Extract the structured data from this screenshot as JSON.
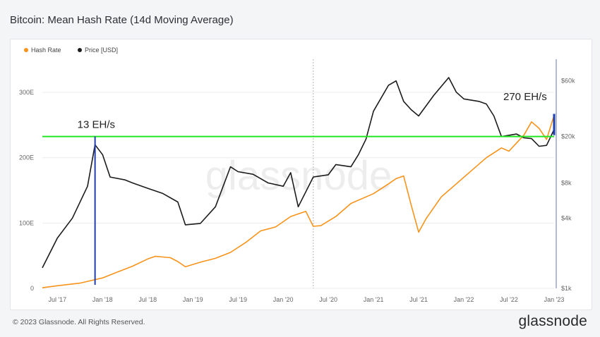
{
  "title": "Bitcoin: Mean Hash Rate (14d Moving Average)",
  "footer": {
    "copyright": "© 2023 Glassnode. All Rights Reserved.",
    "brand": "glassnode"
  },
  "watermark": "glassnode",
  "colors": {
    "hash_rate": "#f7931a",
    "price": "#1c1c1c",
    "threshold": "#22e622",
    "marker": "#1f3fb0",
    "grid": "#ececec"
  },
  "chart_data": {
    "type": "line",
    "title": "Bitcoin: Mean Hash Rate (14d Moving Average)",
    "legend": [
      {
        "name": "Hash Rate",
        "color": "#f7931a"
      },
      {
        "name": "Price [USD]",
        "color": "#1c1c1c"
      }
    ],
    "legend_position": "top-left",
    "grid": true,
    "x_ticks": [
      "Jul '17",
      "Jan '18",
      "Jul '18",
      "Jan '19",
      "Jul '19",
      "Jan '20",
      "Jul '20",
      "Jan '21",
      "Jul '21",
      "Jan '22",
      "Jul '22",
      "Jan '23"
    ],
    "x_range": [
      "2017-05",
      "2023-01"
    ],
    "y_left": {
      "ticks": [
        "0",
        "100E",
        "200E",
        "300E"
      ],
      "values": [
        0,
        100,
        200,
        300
      ],
      "range": [
        0,
        340
      ],
      "unit": "EH/s"
    },
    "y_right": {
      "ticks": [
        "$1k",
        "$4k",
        "$8k",
        "$20k",
        "$60k"
      ],
      "values": [
        1000,
        4000,
        8000,
        20000,
        60000
      ],
      "range": [
        1000,
        80000
      ],
      "scale": "log"
    },
    "series": [
      {
        "name": "Hash Rate",
        "axis": "left",
        "dates": [
          "2017-05",
          "2017-07",
          "2017-10",
          "2018-01",
          "2018-03",
          "2018-05",
          "2018-07",
          "2018-08",
          "2018-09",
          "2018-10",
          "2018-11",
          "2018-12",
          "2019-02",
          "2019-04",
          "2019-06",
          "2019-08",
          "2019-10",
          "2019-12",
          "2020-02",
          "2020-04",
          "2020-05",
          "2020-06",
          "2020-08",
          "2020-10",
          "2020-11",
          "2021-01",
          "2021-03",
          "2021-04",
          "2021-05",
          "2021-06",
          "2021-07",
          "2021-08",
          "2021-10",
          "2021-12",
          "2022-02",
          "2022-04",
          "2022-06",
          "2022-07",
          "2022-09",
          "2022-10",
          "2022-11",
          "2022-12",
          "2023-01"
        ],
        "values": [
          1,
          4,
          8,
          16,
          25,
          34,
          45,
          49,
          48,
          47,
          41,
          33,
          40,
          46,
          55,
          70,
          88,
          94,
          110,
          118,
          95,
          96,
          110,
          130,
          135,
          145,
          160,
          168,
          172,
          128,
          86,
          107,
          140,
          160,
          180,
          200,
          215,
          210,
          235,
          255,
          245,
          228,
          265
        ]
      },
      {
        "name": "Price [USD]",
        "axis": "right",
        "dates": [
          "2017-05",
          "2017-07",
          "2017-09",
          "2017-11",
          "2017-12",
          "2018-01",
          "2018-02",
          "2018-04",
          "2018-05",
          "2018-07",
          "2018-09",
          "2018-11",
          "2018-12",
          "2019-02",
          "2019-04",
          "2019-06",
          "2019-07",
          "2019-09",
          "2019-11",
          "2020-01",
          "2020-02",
          "2020-03",
          "2020-05",
          "2020-07",
          "2020-08",
          "2020-10",
          "2020-11",
          "2020-12",
          "2021-01",
          "2021-03",
          "2021-04",
          "2021-05",
          "2021-06",
          "2021-07",
          "2021-09",
          "2021-11",
          "2021-12",
          "2022-01",
          "2022-03",
          "2022-04",
          "2022-05",
          "2022-06",
          "2022-08",
          "2022-09",
          "2022-10",
          "2022-11",
          "2022-12",
          "2023-01"
        ],
        "values": [
          1500,
          2700,
          4000,
          7500,
          17000,
          14000,
          9000,
          8500,
          8000,
          7200,
          6500,
          5500,
          3500,
          3600,
          5000,
          11000,
          10000,
          9500,
          8000,
          7500,
          9800,
          5000,
          9000,
          9400,
          11500,
          11000,
          14000,
          19000,
          33000,
          55000,
          60000,
          40000,
          34000,
          30000,
          45000,
          64000,
          48000,
          42000,
          40000,
          38000,
          30000,
          20000,
          21000,
          19500,
          19200,
          16500,
          16800,
          23000
        ]
      }
    ],
    "annotations": [
      {
        "text": "13 EH/s",
        "date": "2017-12"
      },
      {
        "text": "270 EH/s",
        "date": "2023-01"
      }
    ],
    "reference_line": {
      "axis": "right",
      "value": 20000
    }
  }
}
